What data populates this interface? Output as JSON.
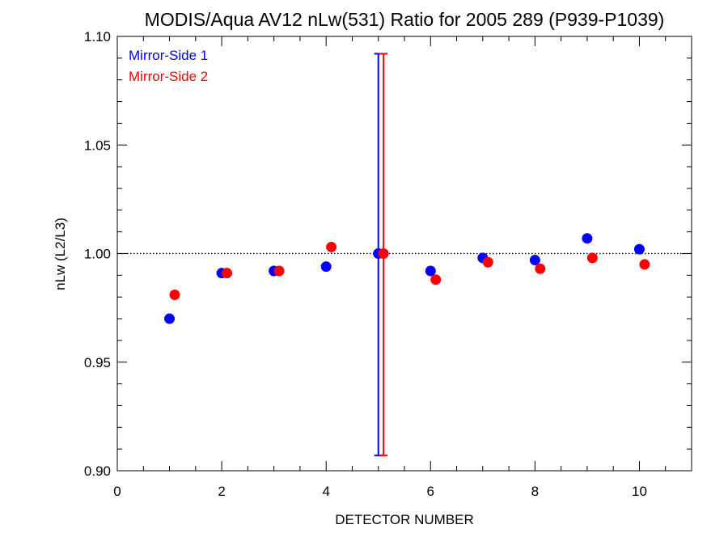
{
  "chart_data": {
    "type": "scatter",
    "title": "MODIS/Aqua AV12 nLw(531) Ratio for 2005 289 (P939-P1039)",
    "xlabel": "DETECTOR NUMBER",
    "ylabel": "nLw (L2/L3)",
    "xlim": [
      0,
      11
    ],
    "ylim": [
      0.9,
      1.1
    ],
    "xticks": [
      0,
      2,
      4,
      6,
      8,
      10
    ],
    "xtick_labels": [
      "0",
      "2",
      "4",
      "6",
      "8",
      "10"
    ],
    "yticks": [
      0.9,
      0.95,
      1.0,
      1.05,
      1.1
    ],
    "ytick_labels": [
      "0.90",
      "0.95",
      "1.00",
      "1.05",
      "1.10"
    ],
    "reference_line": 1.0,
    "grid": false,
    "legend_position": "top-left",
    "series": [
      {
        "name": "Mirror-Side 1",
        "color": "#0000ff",
        "x": [
          1,
          2,
          3,
          4,
          5,
          6,
          7,
          8,
          9,
          10
        ],
        "y": [
          0.97,
          0.991,
          0.992,
          0.994,
          1.0,
          0.992,
          0.998,
          0.997,
          1.007,
          1.002
        ],
        "error_bar": {
          "x": 5,
          "low": 0.907,
          "high": 1.092
        }
      },
      {
        "name": "Mirror-Side 2",
        "color": "#ff0000",
        "x": [
          1.1,
          2.1,
          3.1,
          4.1,
          5.1,
          6.1,
          7.1,
          8.1,
          9.1,
          10.1
        ],
        "y": [
          0.981,
          0.991,
          0.992,
          1.003,
          1.0,
          0.988,
          0.996,
          0.993,
          0.998,
          0.995
        ],
        "error_bar": {
          "x": 5.1,
          "low": 0.907,
          "high": 1.092
        }
      }
    ]
  }
}
